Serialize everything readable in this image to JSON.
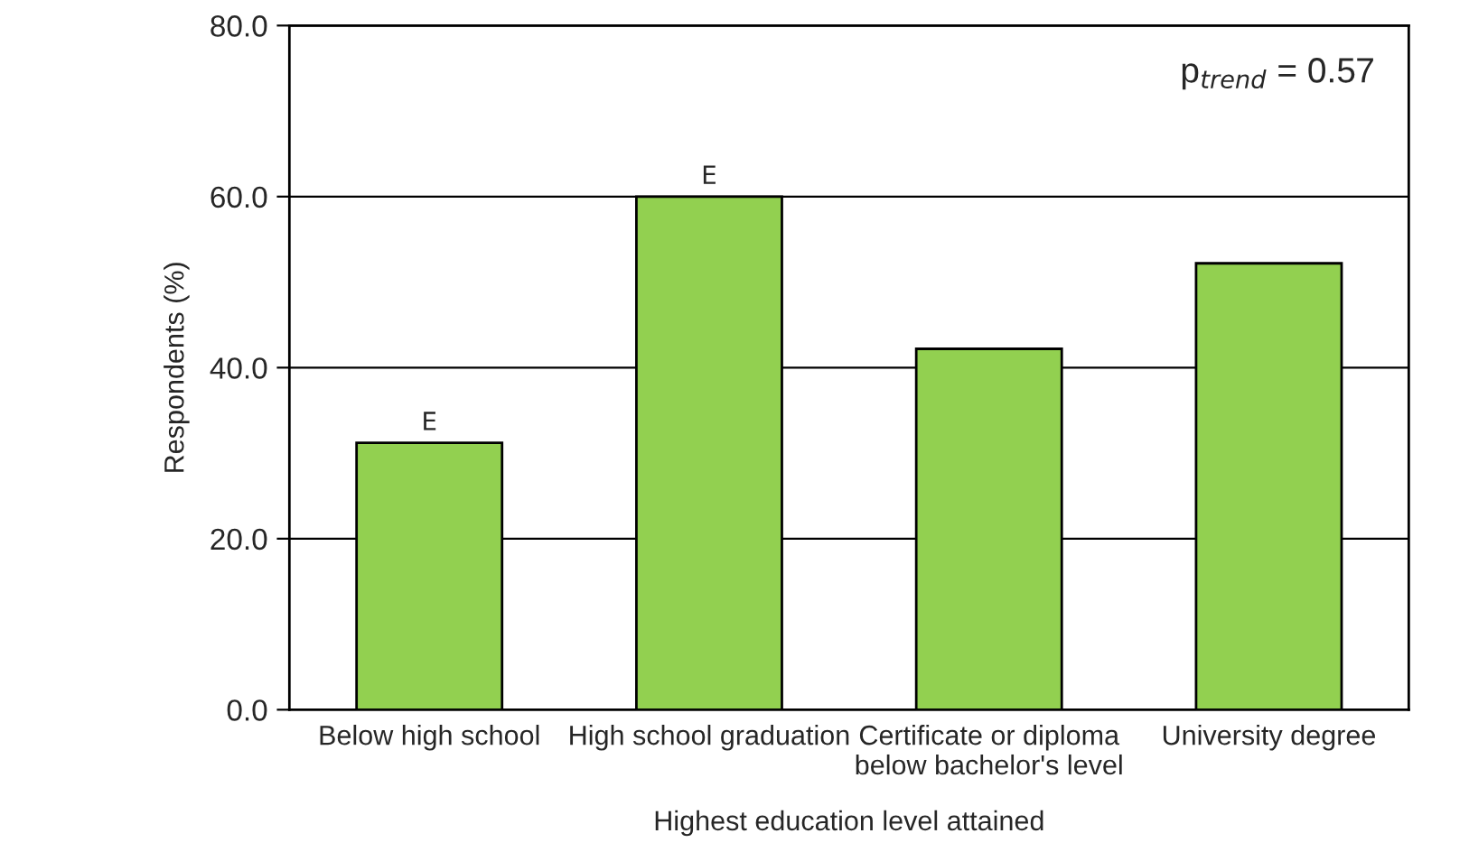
{
  "chart_data": {
    "type": "bar",
    "categories": [
      "Below high school",
      "High school graduation",
      "Certificate or diploma\nbelow bachelor's level",
      "University degree"
    ],
    "values": [
      31.2,
      60.0,
      42.2,
      52.2
    ],
    "value_labels": [
      "E",
      "E",
      null,
      null
    ],
    "color": "#92d050",
    "xlabel": "Highest education level attained",
    "ylabel": "Respondents (%)",
    "ylim": [
      0,
      80
    ],
    "yticks": [
      {
        "value": 0,
        "label": "0.0"
      },
      {
        "value": 20,
        "label": "20.0"
      },
      {
        "value": 40,
        "label": "40.0"
      },
      {
        "value": 60,
        "label": "60.0"
      },
      {
        "value": 80,
        "label": "80.0"
      }
    ],
    "grid": "y",
    "annotations": [
      "p$_{trend}$ = 0.57"
    ]
  }
}
